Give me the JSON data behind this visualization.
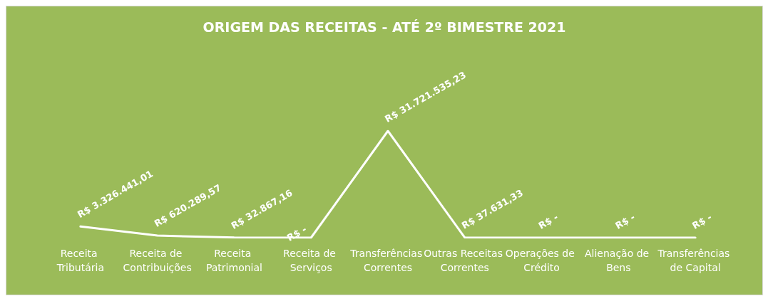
{
  "chart_data": {
    "type": "line",
    "title": "ORIGEM DAS RECEITAS - ATÉ 2º BIMESTRE 2021",
    "categories": [
      "Receita Tributária",
      "Receita de Contribuições",
      "Receita Patrimonial",
      "Receita de Serviços",
      "Transferências Correntes",
      "Outras Receitas Correntes",
      "Operações de Crédito",
      "Alienação de Bens",
      "Transferências de Capital"
    ],
    "series": [
      {
        "color": "#ffffff",
        "values": [
          3326441.01,
          620289.57,
          32867.16,
          0,
          31721535.23,
          37631.33,
          0,
          0,
          0
        ],
        "value_labels": [
          "R$ 3.326.441,01",
          "R$ 620.289,57",
          "R$ 32.867,16",
          "R$ -",
          "R$ 31.721.535,23",
          "R$ 37.631,33",
          "R$ -",
          "R$ -",
          "R$ -"
        ]
      }
    ],
    "grid": false,
    "marker": "none",
    "line_style": "solid"
  }
}
